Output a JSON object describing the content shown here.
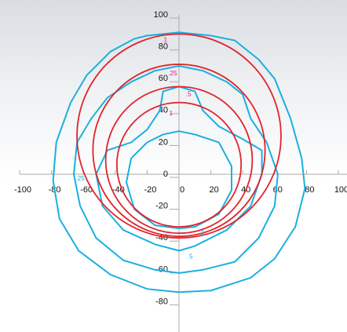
{
  "chart_data": {
    "type": "contour",
    "xlim": [
      -100,
      100
    ],
    "ylim": [
      -100,
      100
    ],
    "xticks": [
      -100,
      -80,
      -60,
      -40,
      -20,
      0,
      20,
      40,
      60,
      80,
      100
    ],
    "yticks": [
      -80,
      -60,
      -40,
      -20,
      0,
      20,
      40,
      60,
      80,
      100
    ],
    "axis_color": "#aaaaaa",
    "circle_color": "#e0242c",
    "contour_color": "#1ab0e0",
    "circles": [
      {
        "cx": 0,
        "cy": 24,
        "r": 64
      },
      {
        "cx": 0,
        "cy": 15,
        "r": 54
      },
      {
        "cx": 0,
        "cy": 9,
        "r": 46
      },
      {
        "cx": 0,
        "cy": 6,
        "r": 39
      }
    ],
    "contours": [
      {
        "x": [
          -20,
          0,
          20,
          35,
          50,
          60,
          70,
          77,
          79,
          73,
          60,
          45,
          20,
          0,
          -20,
          -43,
          -63,
          -75,
          -79,
          -77,
          -68,
          -58,
          -43,
          -28
        ],
        "y": [
          87,
          89,
          87,
          84,
          72,
          60,
          35,
          10,
          -9,
          -33,
          -53,
          -65,
          -73,
          -74,
          -72,
          -63,
          -48,
          -28,
          -4,
          20,
          45,
          62,
          77,
          85
        ]
      },
      {
        "x": [
          -15,
          0,
          15,
          30,
          40,
          45,
          55,
          62,
          60,
          50,
          35,
          15,
          0,
          -15,
          -35,
          -52,
          -62,
          -66,
          -64,
          -55,
          -45,
          -30
        ],
        "y": [
          65,
          68,
          65,
          58,
          50,
          35,
          20,
          0,
          -20,
          -40,
          -55,
          -60,
          -62,
          -60,
          -54,
          -40,
          -20,
          0,
          20,
          35,
          48,
          58
        ]
      },
      {
        "x": [
          -10,
          0,
          10,
          15,
          25,
          40,
          52,
          52,
          45,
          30,
          10,
          0,
          -15,
          -35,
          -48,
          -52,
          -45,
          -30,
          -20,
          -12
        ],
        "y": [
          52,
          55,
          52,
          40,
          30,
          22,
          15,
          0,
          -20,
          -35,
          -45,
          -48,
          -44,
          -35,
          -20,
          0,
          15,
          20,
          28,
          40
        ]
      },
      {
        "x": [
          -10,
          0,
          10,
          25,
          33,
          33,
          25,
          10,
          0,
          -15,
          -28,
          -33,
          -30,
          -20
        ],
        "y": [
          25,
          27,
          25,
          20,
          5,
          -10,
          -25,
          -33,
          -34,
          -32,
          -22,
          -5,
          10,
          20
        ]
      }
    ],
    "annotations": [
      {
        "text": ".1",
        "x": -9,
        "y": 84,
        "color": "#e0148c"
      },
      {
        "text": ".25",
        "x": -4,
        "y": 63,
        "color": "#e0148c"
      },
      {
        "text": ".5",
        "x": 6,
        "y": 50,
        "color": "#e0148c"
      },
      {
        "text": "1",
        "x": -5,
        "y": 38,
        "color": "#e0148c"
      },
      {
        "text": "1",
        "x": 15,
        "y": -37,
        "color": "#1ab0e0"
      },
      {
        "text": ".25",
        "x": -62,
        "y": -3,
        "color": "#1ab0e0"
      },
      {
        "text": ".5",
        "x": 7,
        "y": -52,
        "color": "#1ab0e0"
      }
    ]
  }
}
